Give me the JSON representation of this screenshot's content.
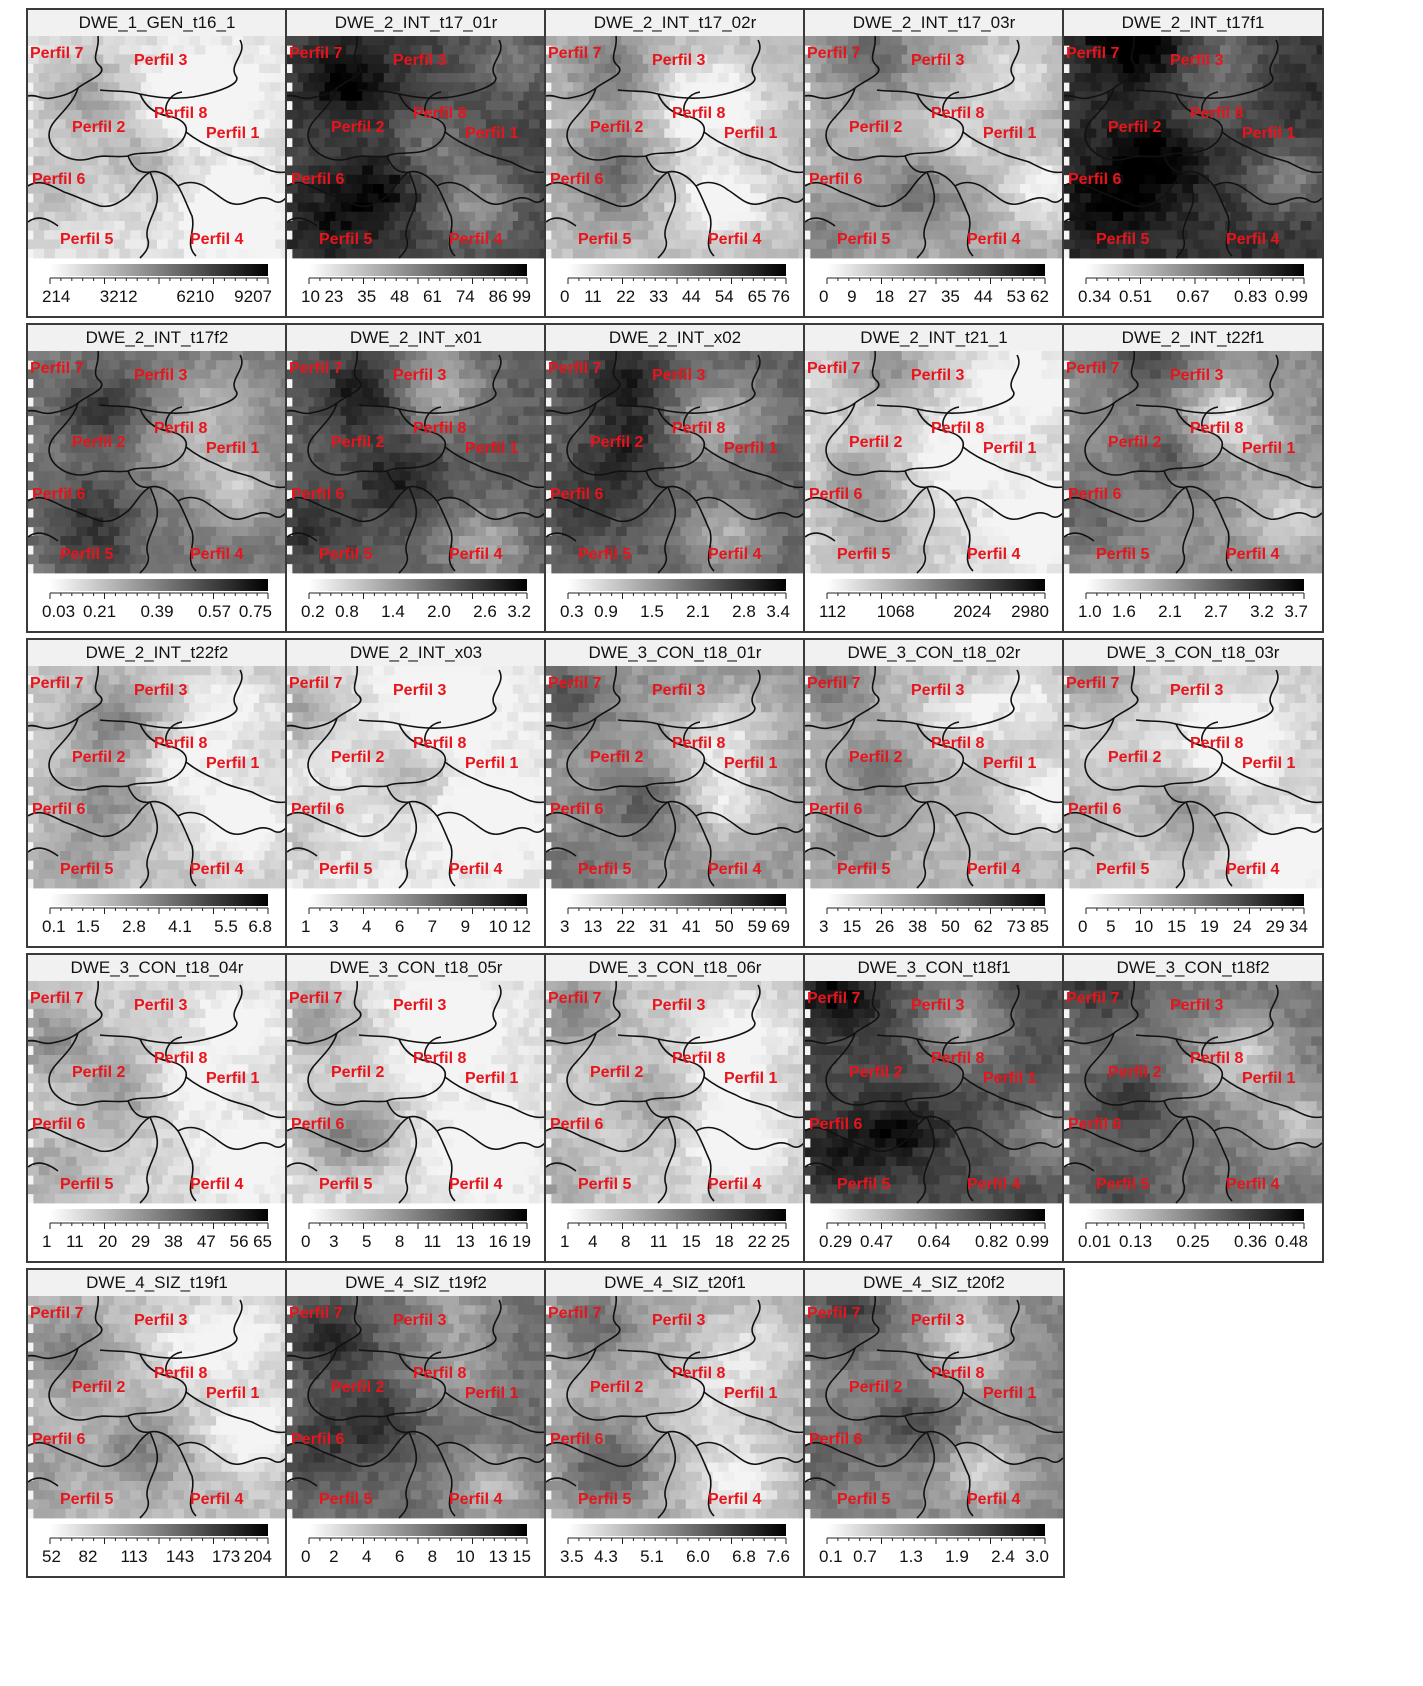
{
  "profile_labels": [
    "Perfil 7",
    "Perfil 3",
    "Perfil 8",
    "Perfil 2",
    "Perfil 1",
    "Perfil 6",
    "Perfil 5",
    "Perfil 4"
  ],
  "colors": {
    "label": "#e8141c",
    "boundary": "#111111",
    "frame": "#3a3a3a",
    "low": "#f4f4f4",
    "high": "#000000"
  },
  "chart_data": [
    {
      "type": "heatmap",
      "title": "DWE_1_GEN_t16_1",
      "ticks": [
        "214",
        "3212",
        "6210",
        "9207"
      ],
      "range": [
        214,
        9207
      ],
      "intensity": 0.08
    },
    {
      "type": "heatmap",
      "title": "DWE_2_INT_t17_01r",
      "ticks": [
        "10",
        "23",
        "35",
        "48",
        "61",
        "74",
        "86",
        "99"
      ],
      "range": [
        10,
        99
      ],
      "intensity": 0.72
    },
    {
      "type": "heatmap",
      "title": "DWE_2_INT_t17_02r",
      "ticks": [
        "0",
        "11",
        "22",
        "33",
        "44",
        "54",
        "65",
        "76"
      ],
      "range": [
        0,
        76
      ],
      "intensity": 0.22
    },
    {
      "type": "heatmap",
      "title": "DWE_2_INT_t17_03r",
      "ticks": [
        "0",
        "9",
        "18",
        "27",
        "35",
        "44",
        "53",
        "62"
      ],
      "range": [
        0,
        62
      ],
      "intensity": 0.3
    },
    {
      "type": "heatmap",
      "title": "DWE_2_INT_t17f1",
      "ticks": [
        "0.34",
        "0.51",
        "0.67",
        "0.83",
        "0.99"
      ],
      "range": [
        0.34,
        0.99
      ],
      "intensity": 0.8
    },
    {
      "type": "heatmap",
      "title": "DWE_2_INT_t17f2",
      "ticks": [
        "0.03",
        "0.21",
        "0.39",
        "0.57",
        "0.75"
      ],
      "range": [
        0.03,
        0.75
      ],
      "intensity": 0.5
    },
    {
      "type": "heatmap",
      "title": "DWE_2_INT_x01",
      "ticks": [
        "0.2",
        "0.8",
        "1.4",
        "2.0",
        "2.6",
        "3.2"
      ],
      "range": [
        0.2,
        3.2
      ],
      "intensity": 0.62
    },
    {
      "type": "heatmap",
      "title": "DWE_2_INT_x02",
      "ticks": [
        "0.3",
        "0.9",
        "1.5",
        "2.1",
        "2.8",
        "3.4"
      ],
      "range": [
        0.3,
        3.4
      ],
      "intensity": 0.6
    },
    {
      "type": "heatmap",
      "title": "DWE_2_INT_t21_1",
      "ticks": [
        "112",
        "1068",
        "2024",
        "2980"
      ],
      "range": [
        112,
        2980
      ],
      "intensity": 0.12
    },
    {
      "type": "heatmap",
      "title": "DWE_2_INT_t22f1",
      "ticks": [
        "1.0",
        "1.6",
        "2.1",
        "2.7",
        "3.2",
        "3.7"
      ],
      "range": [
        1.0,
        3.7
      ],
      "intensity": 0.42
    },
    {
      "type": "heatmap",
      "title": "DWE_2_INT_t22f2",
      "ticks": [
        "0.1",
        "1.5",
        "2.8",
        "4.1",
        "5.5",
        "6.8"
      ],
      "range": [
        0.1,
        6.8
      ],
      "intensity": 0.18
    },
    {
      "type": "heatmap",
      "title": "DWE_2_INT_x03",
      "ticks": [
        "1",
        "3",
        "4",
        "6",
        "7",
        "9",
        "10",
        "12"
      ],
      "range": [
        1,
        12
      ],
      "intensity": 0.05
    },
    {
      "type": "heatmap",
      "title": "DWE_3_CON_t18_01r",
      "ticks": [
        "3",
        "13",
        "22",
        "31",
        "41",
        "50",
        "59",
        "69"
      ],
      "range": [
        3,
        69
      ],
      "intensity": 0.38
    },
    {
      "type": "heatmap",
      "title": "DWE_3_CON_t18_02r",
      "ticks": [
        "3",
        "15",
        "26",
        "38",
        "50",
        "62",
        "73",
        "85"
      ],
      "range": [
        3,
        85
      ],
      "intensity": 0.25
    },
    {
      "type": "heatmap",
      "title": "DWE_3_CON_t18_03r",
      "ticks": [
        "0",
        "5",
        "10",
        "15",
        "19",
        "24",
        "29",
        "34"
      ],
      "range": [
        0,
        34
      ],
      "intensity": 0.15
    },
    {
      "type": "heatmap",
      "title": "DWE_3_CON_t18_04r",
      "ticks": [
        "1",
        "11",
        "20",
        "29",
        "38",
        "47",
        "56",
        "65"
      ],
      "range": [
        1,
        65
      ],
      "intensity": 0.14
    },
    {
      "type": "heatmap",
      "title": "DWE_3_CON_t18_05r",
      "ticks": [
        "0",
        "3",
        "5",
        "8",
        "11",
        "13",
        "16",
        "19"
      ],
      "range": [
        0,
        19
      ],
      "intensity": 0.08
    },
    {
      "type": "heatmap",
      "title": "DWE_3_CON_t18_06r",
      "ticks": [
        "1",
        "4",
        "8",
        "11",
        "15",
        "18",
        "22",
        "25"
      ],
      "range": [
        1,
        25
      ],
      "intensity": 0.16
    },
    {
      "type": "heatmap",
      "title": "DWE_3_CON_t18f1",
      "ticks": [
        "0.29",
        "0.47",
        "0.64",
        "0.82",
        "0.99"
      ],
      "range": [
        0.29,
        0.99
      ],
      "intensity": 0.68
    },
    {
      "type": "heatmap",
      "title": "DWE_3_CON_t18f2",
      "ticks": [
        "0.01",
        "0.13",
        "0.25",
        "0.36",
        "0.48"
      ],
      "range": [
        0.01,
        0.48
      ],
      "intensity": 0.52
    },
    {
      "type": "heatmap",
      "title": "DWE_4_SIZ_t19f1",
      "ticks": [
        "52",
        "82",
        "113",
        "143",
        "173",
        "204"
      ],
      "range": [
        52,
        204
      ],
      "intensity": 0.22
    },
    {
      "type": "heatmap",
      "title": "DWE_4_SIZ_t19f2",
      "ticks": [
        "0",
        "2",
        "4",
        "6",
        "8",
        "10",
        "13",
        "15"
      ],
      "range": [
        0,
        15
      ],
      "intensity": 0.55
    },
    {
      "type": "heatmap",
      "title": "DWE_4_SIZ_t20f1",
      "ticks": [
        "3.5",
        "4.3",
        "5.1",
        "6.0",
        "6.8",
        "7.6"
      ],
      "range": [
        3.5,
        7.6
      ],
      "intensity": 0.28
    },
    {
      "type": "heatmap",
      "title": "DWE_4_SIZ_t20f2",
      "ticks": [
        "0.1",
        "0.7",
        "1.3",
        "1.9",
        "2.4",
        "3.0"
      ],
      "range": [
        0.1,
        3.0
      ],
      "intensity": 0.45
    }
  ]
}
